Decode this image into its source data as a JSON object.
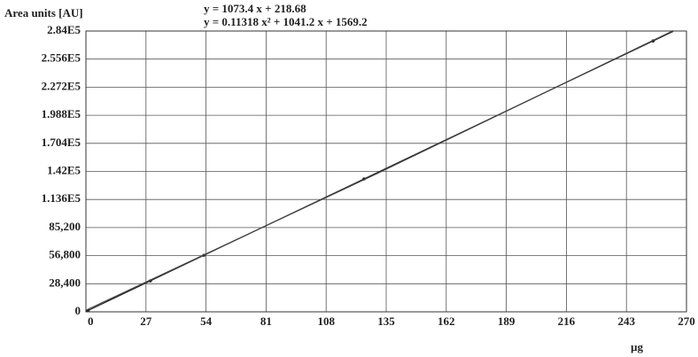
{
  "chart_data": {
    "type": "line",
    "y_label": "Area units [AU]",
    "x_label": "µg",
    "annotations": [
      "y = 1073.4 x + 218.68",
      "y = 0.11318 x² + 1041.2 x + 1569.2"
    ],
    "xlim": [
      0,
      270
    ],
    "xticks": [
      0,
      27,
      54,
      81,
      108,
      135,
      162,
      189,
      216,
      243,
      270
    ],
    "ylim": [
      0,
      284000
    ],
    "yticks": [
      0,
      {
        "value": 28400,
        "label": "28,400"
      },
      {
        "value": 56800,
        "label": "56,800"
      },
      {
        "value": 85200,
        "label": "85,200"
      },
      {
        "value": 113600,
        "label": "1.136E5"
      },
      {
        "value": 142000,
        "label": "1.42E5"
      },
      {
        "value": 170400,
        "label": "1.704E5"
      },
      {
        "value": 198800,
        "label": "1.988E5"
      },
      {
        "value": 227200,
        "label": "2.272E5"
      },
      {
        "value": 255600,
        "label": "2.556E5"
      },
      {
        "value": 284000,
        "label": "2.84E5"
      }
    ],
    "grid": true,
    "series": [
      {
        "mode": "markers",
        "color": "#333",
        "x": [
          1,
          29,
          53,
          125,
          255
        ],
        "values": [
          1292,
          31347,
          57108,
          134393,
          273936
        ]
      },
      {
        "mode": "line",
        "color": "#222",
        "x": [
          0,
          264
        ],
        "values": [
          218.68,
          283596
        ]
      },
      {
        "mode": "line",
        "color": "#444",
        "x": [
          0,
          132,
          264
        ],
        "values": [
          1569.2,
          140980,
          284334
        ]
      }
    ]
  }
}
